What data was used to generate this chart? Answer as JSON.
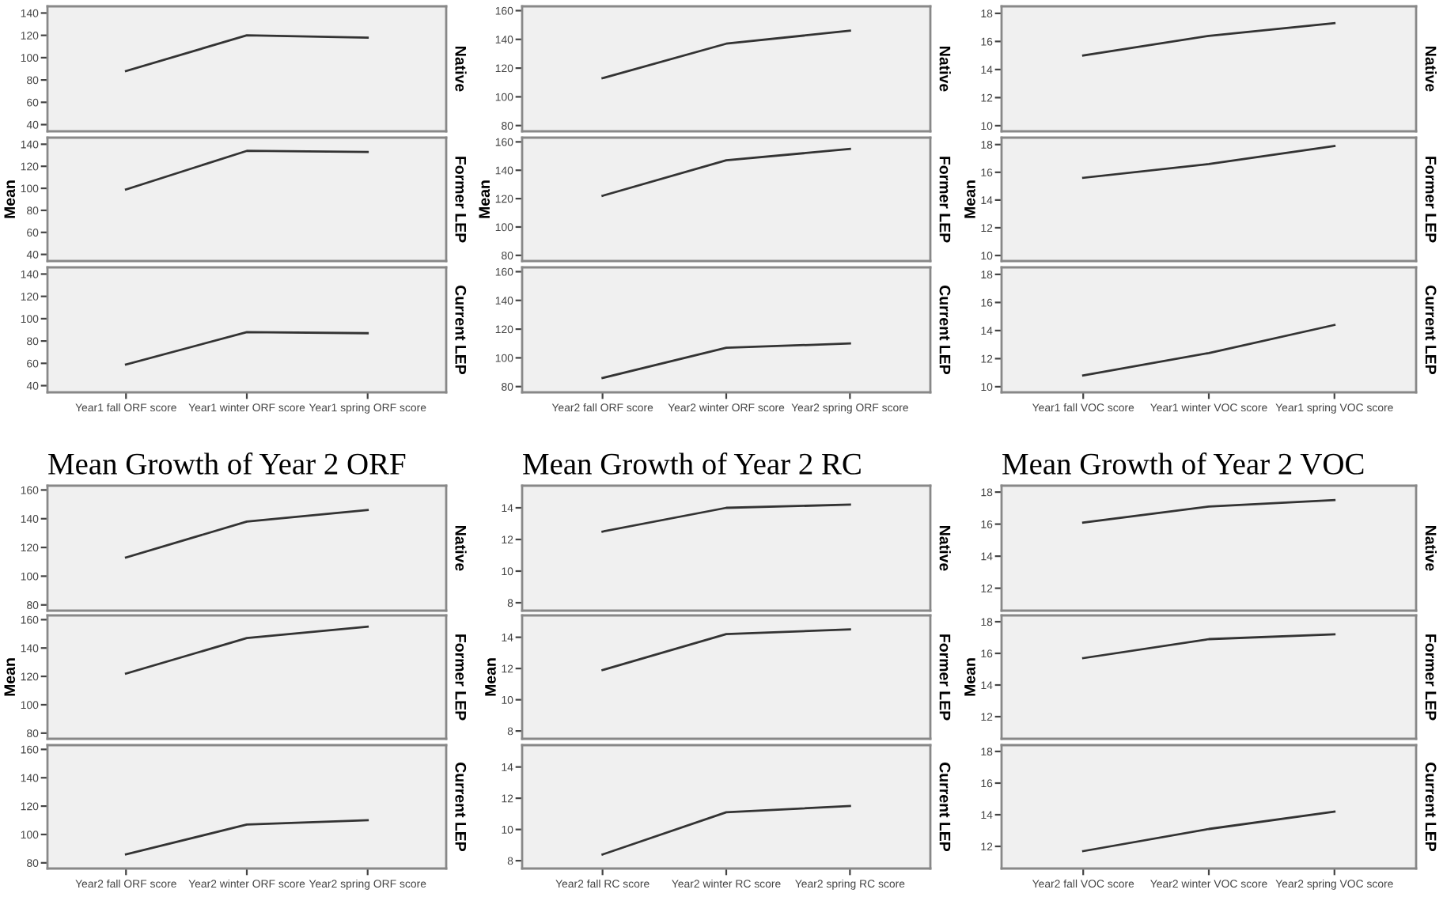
{
  "chart_data": [
    {
      "type": "line",
      "y2label": "Native",
      "tick_labels": "y",
      "categories": [
        null,
        null,
        null
      ],
      "ylim": [
        34,
        146
      ],
      "yticks": [
        40,
        60,
        80,
        100,
        120,
        140
      ],
      "color": "#333333",
      "values": [
        88,
        120,
        118
      ]
    },
    {
      "type": "line",
      "y2label": "Former LEP",
      "ylabel": "Mean",
      "tick_labels": "y",
      "categories": [
        null,
        null,
        null
      ],
      "ylim": [
        34,
        146
      ],
      "yticks": [
        40,
        60,
        80,
        100,
        120,
        140
      ],
      "color": "#333333",
      "values": [
        99,
        134,
        133
      ]
    },
    {
      "type": "line",
      "y2label": "Current LEP",
      "categories": [
        "Year1 fall ORF score",
        "Year1 winter ORF score",
        "Year1 spring ORF score"
      ],
      "ylim": [
        34,
        146
      ],
      "yticks": [
        40,
        60,
        80,
        100,
        120,
        140
      ],
      "color": "#333333",
      "values": [
        59,
        88,
        87
      ]
    },
    {
      "type": "line",
      "y2label": "Native",
      "tick_labels": "y",
      "categories": [
        null,
        null,
        null
      ],
      "ylim": [
        76,
        163
      ],
      "yticks": [
        80,
        100,
        120,
        140,
        160
      ],
      "color": "#333333",
      "values": [
        113,
        137,
        146
      ]
    },
    {
      "type": "line",
      "y2label": "Former LEP",
      "ylabel": "Mean",
      "tick_labels": "y",
      "categories": [
        null,
        null,
        null
      ],
      "ylim": [
        76,
        163
      ],
      "yticks": [
        80,
        100,
        120,
        140,
        160
      ],
      "color": "#333333",
      "values": [
        122,
        147,
        155
      ]
    },
    {
      "type": "line",
      "y2label": "Current LEP",
      "categories": [
        "Year2 fall ORF score",
        "Year2 winter ORF score",
        "Year2 spring ORF score"
      ],
      "ylim": [
        76,
        163
      ],
      "yticks": [
        80,
        100,
        120,
        140,
        160
      ],
      "color": "#333333",
      "values": [
        86,
        107,
        110
      ]
    },
    {
      "type": "line",
      "y2label": "Native",
      "tick_labels": "y",
      "categories": [
        null,
        null,
        null
      ],
      "ylim": [
        9.6,
        18.5
      ],
      "yticks": [
        10,
        12,
        14,
        16,
        18
      ],
      "color": "#333333",
      "values": [
        15,
        16.4,
        17.3
      ]
    },
    {
      "type": "line",
      "y2label": "Former LEP",
      "ylabel": "Mean",
      "tick_labels": "y",
      "categories": [
        null,
        null,
        null
      ],
      "ylim": [
        9.6,
        18.5
      ],
      "yticks": [
        10,
        12,
        14,
        16,
        18
      ],
      "color": "#333333",
      "values": [
        15.6,
        16.6,
        17.9
      ]
    },
    {
      "type": "line",
      "y2label": "Current LEP",
      "categories": [
        "Year1 fall VOC score",
        "Year1 winter VOC score",
        "Year1 spring VOC score"
      ],
      "ylim": [
        9.6,
        18.5
      ],
      "yticks": [
        10,
        12,
        14,
        16,
        18
      ],
      "color": "#333333",
      "values": [
        10.8,
        12.4,
        14.4
      ]
    },
    {
      "type": "line",
      "title": "Mean Growth of Year 2 ORF",
      "y2label": "Native",
      "tick_labels": "y",
      "categories": [
        null,
        null,
        null
      ],
      "ylim": [
        76,
        163
      ],
      "yticks": [
        80,
        100,
        120,
        140,
        160
      ],
      "color": "#333333",
      "values": [
        113,
        138,
        146
      ]
    },
    {
      "type": "line",
      "y2label": "Former LEP",
      "ylabel": "Mean",
      "tick_labels": "y",
      "categories": [
        null,
        null,
        null
      ],
      "ylim": [
        76,
        163
      ],
      "yticks": [
        80,
        100,
        120,
        140,
        160
      ],
      "color": "#333333",
      "values": [
        122,
        147,
        155
      ]
    },
    {
      "type": "line",
      "y2label": "Current LEP",
      "categories": [
        "Year2 fall ORF score",
        "Year2 winter ORF score",
        "Year2 spring ORF score"
      ],
      "ylim": [
        76,
        163
      ],
      "yticks": [
        80,
        100,
        120,
        140,
        160
      ],
      "color": "#333333",
      "values": [
        86,
        107,
        110
      ]
    },
    {
      "type": "line",
      "title": "Mean Growth of Year 2 RC",
      "y2label": "Native",
      "tick_labels": "y",
      "categories": [
        null,
        null,
        null
      ],
      "ylim": [
        7.5,
        15.4
      ],
      "yticks": [
        8,
        10,
        12,
        14
      ],
      "color": "#333333",
      "values": [
        12.5,
        14,
        14.2
      ]
    },
    {
      "type": "line",
      "y2label": "Former LEP",
      "ylabel": "Mean",
      "tick_labels": "y",
      "categories": [
        null,
        null,
        null
      ],
      "ylim": [
        7.5,
        15.4
      ],
      "yticks": [
        8,
        10,
        12,
        14
      ],
      "color": "#333333",
      "values": [
        11.9,
        14.2,
        14.5
      ]
    },
    {
      "type": "line",
      "y2label": "Current LEP",
      "categories": [
        "Year2 fall RC score",
        "Year2 winter RC score",
        "Year2 spring RC score"
      ],
      "ylim": [
        7.5,
        15.4
      ],
      "yticks": [
        8,
        10,
        12,
        14
      ],
      "color": "#333333",
      "values": [
        8.4,
        11.1,
        11.5
      ]
    },
    {
      "type": "line",
      "title": "Mean Growth of Year 2 VOC",
      "y2label": "Native",
      "tick_labels": "y",
      "categories": [
        null,
        null,
        null
      ],
      "ylim": [
        10.6,
        18.4
      ],
      "yticks": [
        12,
        14,
        16,
        18
      ],
      "color": "#333333",
      "values": [
        16.1,
        17.1,
        17.5
      ]
    },
    {
      "type": "line",
      "y2label": "Former LEP",
      "ylabel": "Mean",
      "tick_labels": "y",
      "categories": [
        null,
        null,
        null
      ],
      "ylim": [
        10.6,
        18.4
      ],
      "yticks": [
        12,
        14,
        16,
        18
      ],
      "color": "#333333",
      "values": [
        15.7,
        16.9,
        17.2
      ]
    },
    {
      "type": "line",
      "y2label": "Current LEP",
      "categories": [
        "Year2 fall VOC score",
        "Year2 winter VOC score",
        "Year2 spring VOC score"
      ],
      "ylim": [
        10.6,
        18.4
      ],
      "yticks": [
        12,
        14,
        16,
        18
      ],
      "color": "#333333",
      "values": [
        11.7,
        13.1,
        14.2
      ]
    }
  ]
}
